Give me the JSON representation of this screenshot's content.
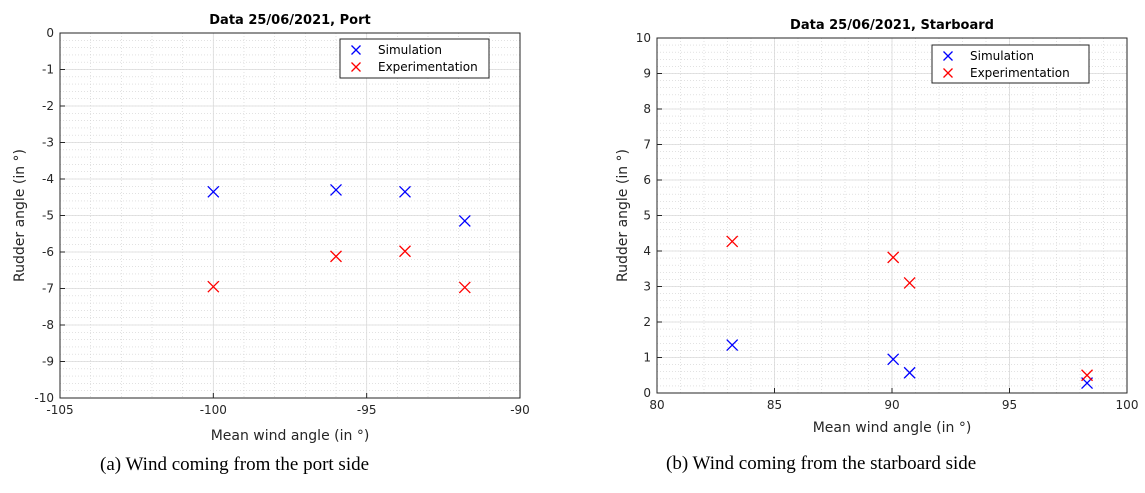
{
  "chart_data": [
    {
      "type": "scatter",
      "title": "Data 25/06/2021, Port",
      "xlabel": "Mean wind angle (in °)",
      "ylabel": "Rudder angle (in °)",
      "xlim": [
        -105,
        -90
      ],
      "ylim": [
        -10,
        0
      ],
      "xticks": [
        "-105",
        "-100",
        "-95",
        "-90"
      ],
      "yticks": [
        "0",
        "-1",
        "-2",
        "-3",
        "-4",
        "-5",
        "-6",
        "-7",
        "-8",
        "-9",
        "-10"
      ],
      "grid": true,
      "minor_grid": true,
      "legend_position": "top-right",
      "series": [
        {
          "name": "Simulation",
          "color": "#0000ff",
          "marker": "x",
          "x": [
            -100,
            -96,
            -93.75,
            -91.8
          ],
          "y": [
            -4.35,
            -4.3,
            -4.35,
            -5.15
          ]
        },
        {
          "name": "Experimentation",
          "color": "#ff0000",
          "marker": "x",
          "x": [
            -100,
            -96,
            -93.75,
            -91.8
          ],
          "y": [
            -6.95,
            -6.12,
            -5.98,
            -6.97
          ]
        }
      ],
      "caption": "(a) Wind coming from the port side"
    },
    {
      "type": "scatter",
      "title": "Data 25/06/2021, Starboard",
      "xlabel": "Mean wind angle (in °)",
      "ylabel": "Rudder angle (in °)",
      "xlim": [
        80,
        100
      ],
      "ylim": [
        0,
        10
      ],
      "xticks": [
        "80",
        "85",
        "90",
        "95",
        "100"
      ],
      "yticks": [
        "0",
        "1",
        "2",
        "3",
        "4",
        "5",
        "6",
        "7",
        "8",
        "9",
        "10"
      ],
      "grid": true,
      "minor_grid": true,
      "legend_position": "top-right",
      "series": [
        {
          "name": "Simulation",
          "color": "#0000ff",
          "marker": "x",
          "x": [
            83.2,
            90.05,
            90.75,
            98.3
          ],
          "y": [
            1.35,
            0.95,
            0.57,
            0.28
          ]
        },
        {
          "name": "Experimentation",
          "color": "#ff0000",
          "marker": "x",
          "x": [
            83.2,
            90.05,
            90.75,
            98.3
          ],
          "y": [
            4.27,
            3.82,
            3.1,
            0.5
          ]
        }
      ],
      "caption": "(b) Wind coming from the starboard side"
    }
  ]
}
